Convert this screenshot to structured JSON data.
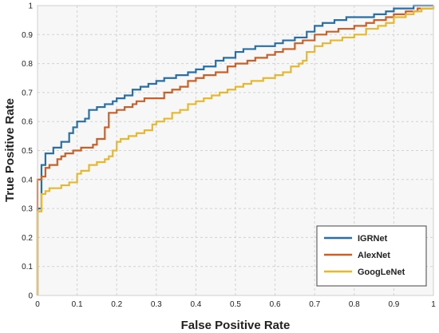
{
  "chart_data": {
    "type": "line",
    "title": "",
    "xlabel": "False Positive Rate",
    "ylabel": "True Positive Rate",
    "xlim": [
      0,
      1
    ],
    "ylim": [
      0,
      1
    ],
    "xticks": [
      0,
      0.1,
      0.2,
      0.3,
      0.4,
      0.5,
      0.6,
      0.7,
      0.8,
      0.9,
      1
    ],
    "yticks": [
      0,
      0.1,
      0.2,
      0.3,
      0.4,
      0.5,
      0.6,
      0.7,
      0.8,
      0.9,
      1
    ],
    "xtick_labels": [
      "0",
      "0.1",
      "0.2",
      "0.3",
      "0.4",
      "0.5",
      "0.6",
      "0.7",
      "0.8",
      "0.9",
      "1"
    ],
    "ytick_labels": [
      "0",
      "0.1",
      "0.2",
      "0.3",
      "0.4",
      "0.5",
      "0.6",
      "0.7",
      "0.8",
      "0.9",
      "1"
    ],
    "grid": true,
    "legend_position": "bottom-right",
    "series": [
      {
        "name": "IGRNet",
        "color": "#2a6ea6",
        "x": [
          0,
          0,
          0.01,
          0.01,
          0.02,
          0.02,
          0.04,
          0.04,
          0.06,
          0.06,
          0.08,
          0.08,
          0.09,
          0.1,
          0.12,
          0.13,
          0.13,
          0.15,
          0.15,
          0.17,
          0.19,
          0.2,
          0.22,
          0.24,
          0.26,
          0.28,
          0.3,
          0.32,
          0.35,
          0.38,
          0.4,
          0.42,
          0.45,
          0.47,
          0.5,
          0.52,
          0.55,
          0.58,
          0.6,
          0.62,
          0.65,
          0.68,
          0.7,
          0.72,
          0.75,
          0.78,
          0.82,
          0.85,
          0.88,
          0.9,
          0.93,
          0.95,
          0.97,
          1
        ],
        "y": [
          0,
          0.3,
          0.3,
          0.45,
          0.45,
          0.49,
          0.49,
          0.51,
          0.51,
          0.53,
          0.53,
          0.56,
          0.58,
          0.6,
          0.61,
          0.62,
          0.64,
          0.64,
          0.65,
          0.66,
          0.67,
          0.68,
          0.69,
          0.71,
          0.72,
          0.73,
          0.74,
          0.75,
          0.76,
          0.77,
          0.78,
          0.79,
          0.81,
          0.82,
          0.84,
          0.85,
          0.86,
          0.86,
          0.87,
          0.88,
          0.89,
          0.91,
          0.93,
          0.94,
          0.95,
          0.96,
          0.96,
          0.97,
          0.98,
          0.99,
          0.99,
          1,
          1,
          1
        ]
      },
      {
        "name": "AlexNet",
        "color": "#c9602a",
        "x": [
          0,
          0,
          0.01,
          0.02,
          0.02,
          0.03,
          0.05,
          0.05,
          0.06,
          0.07,
          0.07,
          0.08,
          0.09,
          0.11,
          0.14,
          0.15,
          0.15,
          0.17,
          0.17,
          0.18,
          0.18,
          0.2,
          0.2,
          0.22,
          0.24,
          0.25,
          0.27,
          0.3,
          0.32,
          0.34,
          0.36,
          0.38,
          0.4,
          0.42,
          0.45,
          0.48,
          0.5,
          0.53,
          0.55,
          0.58,
          0.6,
          0.62,
          0.65,
          0.67,
          0.7,
          0.73,
          0.76,
          0.8,
          0.83,
          0.85,
          0.88,
          0.9,
          0.93,
          0.96,
          1
        ],
        "y": [
          0,
          0.4,
          0.41,
          0.41,
          0.44,
          0.45,
          0.45,
          0.47,
          0.48,
          0.48,
          0.49,
          0.49,
          0.5,
          0.51,
          0.52,
          0.53,
          0.54,
          0.54,
          0.58,
          0.58,
          0.63,
          0.63,
          0.64,
          0.65,
          0.66,
          0.67,
          0.68,
          0.68,
          0.7,
          0.71,
          0.72,
          0.74,
          0.75,
          0.76,
          0.77,
          0.79,
          0.8,
          0.81,
          0.82,
          0.83,
          0.84,
          0.85,
          0.87,
          0.88,
          0.9,
          0.91,
          0.92,
          0.93,
          0.94,
          0.95,
          0.96,
          0.97,
          0.98,
          0.99,
          1
        ]
      },
      {
        "name": "GoogLeNet",
        "color": "#e6b830",
        "x": [
          0,
          0,
          0.01,
          0.01,
          0.02,
          0.03,
          0.04,
          0.06,
          0.08,
          0.1,
          0.1,
          0.11,
          0.13,
          0.13,
          0.15,
          0.17,
          0.18,
          0.19,
          0.2,
          0.21,
          0.23,
          0.25,
          0.27,
          0.29,
          0.3,
          0.32,
          0.34,
          0.36,
          0.38,
          0.4,
          0.42,
          0.44,
          0.46,
          0.48,
          0.5,
          0.52,
          0.54,
          0.57,
          0.6,
          0.62,
          0.64,
          0.66,
          0.67,
          0.68,
          0.7,
          0.72,
          0.74,
          0.77,
          0.8,
          0.83,
          0.86,
          0.88,
          0.9,
          0.93,
          0.95,
          0.97,
          1
        ],
        "y": [
          0,
          0.29,
          0.29,
          0.35,
          0.36,
          0.37,
          0.37,
          0.38,
          0.39,
          0.4,
          0.42,
          0.43,
          0.44,
          0.45,
          0.46,
          0.47,
          0.48,
          0.5,
          0.53,
          0.54,
          0.55,
          0.56,
          0.57,
          0.59,
          0.6,
          0.61,
          0.63,
          0.64,
          0.66,
          0.67,
          0.68,
          0.69,
          0.7,
          0.71,
          0.72,
          0.73,
          0.74,
          0.75,
          0.76,
          0.77,
          0.79,
          0.8,
          0.81,
          0.84,
          0.86,
          0.87,
          0.88,
          0.89,
          0.9,
          0.92,
          0.93,
          0.94,
          0.96,
          0.97,
          0.98,
          0.99,
          1
        ]
      }
    ]
  }
}
